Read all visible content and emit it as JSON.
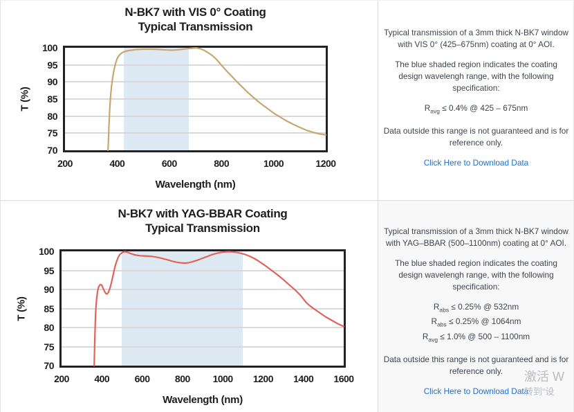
{
  "panels": [
    {
      "description": "Typical transmission of a 3mm thick N-BK7 window with VIS 0° (425–675nm) coating at 0° AOI.",
      "shaded_note": "The blue shaded region indicates the coating design wavelengh range, with the following specification:",
      "specs": [
        {
          "base": "R",
          "sub": "avg",
          "text": "≤ 0.4% @ 425 – 675nm"
        }
      ],
      "disclaimer": "Data outside this range is not guaranteed and is for reference only.",
      "link_label": "Click Here to Download Data"
    },
    {
      "description": "Typical transmission of a 3mm thick N-BK7 window with YAG–BBAR (500–1100nm) coating at 0° AOI.",
      "shaded_note": "The blue shaded region indicates the coating design wavelengh range, with the following specification:",
      "specs": [
        {
          "base": "R",
          "sub": "abs",
          "text": "≤ 0.25% @ 532nm"
        },
        {
          "base": "R",
          "sub": "abs",
          "text": "≤ 0.25% @ 1064nm"
        },
        {
          "base": "R",
          "sub": "avg",
          "text": "≤ 1.0% @ 500 – 1100nm"
        }
      ],
      "disclaimer": "Data outside this range is not guaranteed and is for reference only.",
      "link_label": "Click Here to Download Data"
    }
  ],
  "watermark": {
    "line1": "激活 W",
    "line2": "转到“设"
  },
  "colors": {
    "vis_curve": "#c9a571",
    "yag_curve": "#e2625b",
    "shade_blue": "#deeaf3",
    "link_blue": "#1f6fd4",
    "gridline": "#d9d9d9",
    "plot_border": "#222225"
  },
  "chart_data": [
    {
      "type": "line",
      "title": "N-BK7 with VIS 0° Coating",
      "subtitle": "Typical Transmission",
      "xlabel": "Wavelength (nm)",
      "ylabel": "T (%)",
      "xlim": [
        200,
        1200
      ],
      "ylim": [
        70,
        100
      ],
      "xticks": [
        200,
        400,
        600,
        800,
        1000,
        1200
      ],
      "yticks": [
        100,
        95,
        90,
        85,
        80,
        75,
        70
      ],
      "grid": true,
      "legend": "none",
      "line_color": "#c9a571",
      "shaded_region": {
        "x0": 425,
        "x1": 675,
        "color": "#deeaf3"
      },
      "series": [
        {
          "name": "Typical Transmission",
          "points": [
            [
              365,
              70
            ],
            [
              367,
              74
            ],
            [
              369,
              78
            ],
            [
              372,
              82.5
            ],
            [
              375,
              86
            ],
            [
              378,
              88.5
            ],
            [
              382,
              90.8
            ],
            [
              386,
              92.7
            ],
            [
              390,
              94.2
            ],
            [
              395,
              95.7
            ],
            [
              400,
              96.8
            ],
            [
              406,
              97.6
            ],
            [
              413,
              98.2
            ],
            [
              420,
              98.6
            ],
            [
              430,
              98.9
            ],
            [
              442,
              99.15
            ],
            [
              455,
              99.3
            ],
            [
              470,
              99.45
            ],
            [
              490,
              99.55
            ],
            [
              510,
              99.6
            ],
            [
              530,
              99.6
            ],
            [
              550,
              99.55
            ],
            [
              570,
              99.45
            ],
            [
              590,
              99.35
            ],
            [
              610,
              99.3
            ],
            [
              630,
              99.4
            ],
            [
              650,
              99.55
            ],
            [
              670,
              99.75
            ],
            [
              690,
              99.9
            ],
            [
              705,
              99.95
            ],
            [
              720,
              99.7
            ],
            [
              735,
              99.2
            ],
            [
              750,
              98.5
            ],
            [
              765,
              97.7
            ],
            [
              780,
              96.7
            ],
            [
              800,
              94.9
            ],
            [
              820,
              93.2
            ],
            [
              840,
              91.6
            ],
            [
              860,
              90
            ],
            [
              880,
              88.5
            ],
            [
              900,
              87
            ],
            [
              925,
              85.3
            ],
            [
              950,
              83.7
            ],
            [
              975,
              82.3
            ],
            [
              1000,
              80.9
            ],
            [
              1025,
              79.7
            ],
            [
              1050,
              78.6
            ],
            [
              1075,
              77.6
            ],
            [
              1100,
              76.7
            ],
            [
              1125,
              75.9
            ],
            [
              1150,
              75.3
            ],
            [
              1175,
              74.8
            ],
            [
              1200,
              74.5
            ]
          ]
        }
      ]
    },
    {
      "type": "line",
      "title": "N-BK7 with YAG-BBAR Coating",
      "subtitle": "Typical Transmission",
      "xlabel": "Wavelength (nm)",
      "ylabel": "T (%)",
      "xlim": [
        200,
        1600
      ],
      "ylim": [
        70,
        100
      ],
      "xticks": [
        200,
        400,
        600,
        800,
        1000,
        1200,
        1400,
        1600
      ],
      "yticks": [
        100,
        95,
        90,
        85,
        80,
        75,
        70
      ],
      "grid": true,
      "legend": "none",
      "line_color": "#e2625b",
      "shaded_region": {
        "x0": 500,
        "x1": 1100,
        "color": "#deeaf3"
      },
      "series": [
        {
          "name": "Typical Transmission",
          "points": [
            [
              362,
              70
            ],
            [
              364,
              75
            ],
            [
              366,
              79
            ],
            [
              368,
              82.5
            ],
            [
              371,
              85.5
            ],
            [
              374,
              87.5
            ],
            [
              378,
              89.3
            ],
            [
              383,
              90.5
            ],
            [
              388,
              91.1
            ],
            [
              394,
              91.3
            ],
            [
              400,
              91.1
            ],
            [
              407,
              90.2
            ],
            [
              414,
              89.4
            ],
            [
              420,
              88.9
            ],
            [
              426,
              88.8
            ],
            [
              433,
              89.3
            ],
            [
              440,
              90.3
            ],
            [
              448,
              91.9
            ],
            [
              456,
              93.8
            ],
            [
              464,
              95.7
            ],
            [
              472,
              97.2
            ],
            [
              480,
              98.3
            ],
            [
              488,
              99.1
            ],
            [
              496,
              99.5
            ],
            [
              505,
              99.8
            ],
            [
              515,
              99.9
            ],
            [
              525,
              99.8
            ],
            [
              540,
              99.5
            ],
            [
              555,
              99.2
            ],
            [
              570,
              99.0
            ],
            [
              590,
              98.85
            ],
            [
              610,
              98.8
            ],
            [
              630,
              98.75
            ],
            [
              650,
              98.65
            ],
            [
              670,
              98.5
            ],
            [
              690,
              98.25
            ],
            [
              710,
              98.0
            ],
            [
              730,
              97.7
            ],
            [
              750,
              97.4
            ],
            [
              770,
              97.15
            ],
            [
              790,
              97.0
            ],
            [
              810,
              96.9
            ],
            [
              830,
              97.0
            ],
            [
              850,
              97.3
            ],
            [
              870,
              97.6
            ],
            [
              890,
              98.0
            ],
            [
              910,
              98.4
            ],
            [
              930,
              98.8
            ],
            [
              950,
              99.2
            ],
            [
              970,
              99.5
            ],
            [
              990,
              99.7
            ],
            [
              1010,
              99.85
            ],
            [
              1030,
              99.9
            ],
            [
              1050,
              99.85
            ],
            [
              1070,
              99.7
            ],
            [
              1090,
              99.5
            ],
            [
              1110,
              99.2
            ],
            [
              1130,
              98.8
            ],
            [
              1150,
              98.3
            ],
            [
              1170,
              97.7
            ],
            [
              1190,
              97.0
            ],
            [
              1210,
              96.3
            ],
            [
              1240,
              95.1
            ],
            [
              1270,
              93.9
            ],
            [
              1300,
              92.6
            ],
            [
              1330,
              91.2
            ],
            [
              1360,
              89.8
            ],
            [
              1385,
              88.5
            ],
            [
              1400,
              87.5
            ],
            [
              1415,
              86.5
            ],
            [
              1430,
              85.8
            ],
            [
              1450,
              85.0
            ],
            [
              1480,
              83.9
            ],
            [
              1510,
              82.8
            ],
            [
              1540,
              81.9
            ],
            [
              1570,
              81.0
            ],
            [
              1600,
              80.3
            ]
          ]
        }
      ]
    }
  ]
}
